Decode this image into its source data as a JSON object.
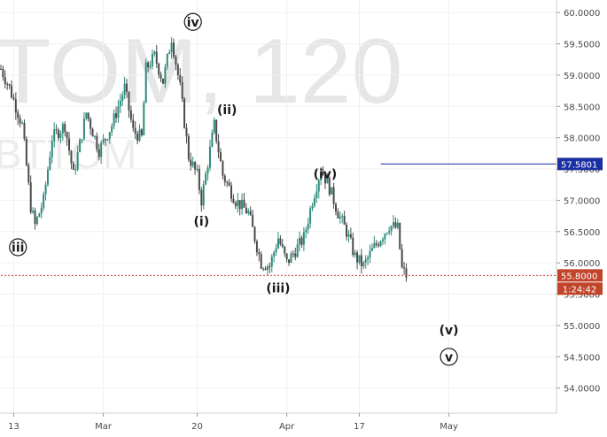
{
  "watermark": {
    "symbol": "TOM, 120",
    "subtitle": "BTTOM"
  },
  "chart_data": {
    "type": "candlestick",
    "ylim": [
      53.6,
      60.2
    ],
    "y_ticks": [
      "60.0000",
      "59.5000",
      "59.0000",
      "58.5000",
      "58.0000",
      "57.5000",
      "57.0000",
      "56.5000",
      "56.0000",
      "55.5000",
      "55.0000",
      "54.5000",
      "54.0000"
    ],
    "x_ticks": [
      {
        "label": "13",
        "index": 3
      },
      {
        "label": "Mar",
        "index": 24
      },
      {
        "label": "20",
        "index": 46
      },
      {
        "label": "Apr",
        "index": 67
      },
      {
        "label": "17",
        "index": 84
      },
      {
        "label": "May",
        "index": 105
      }
    ],
    "bars_total": 130,
    "anchors": [
      [
        0,
        59.1
      ],
      [
        2,
        58.8
      ],
      [
        5,
        58.2
      ],
      [
        7,
        56.9
      ],
      [
        8,
        56.6
      ],
      [
        10,
        57.0
      ],
      [
        12,
        58.0
      ],
      [
        15,
        58.2
      ],
      [
        17,
        57.4
      ],
      [
        20,
        58.4
      ],
      [
        23,
        57.8
      ],
      [
        26,
        58.2
      ],
      [
        29,
        58.8
      ],
      [
        31,
        58.1
      ],
      [
        33,
        58.0
      ],
      [
        34,
        59.1
      ],
      [
        36,
        59.3
      ],
      [
        38,
        58.9
      ],
      [
        40,
        59.6
      ],
      [
        42,
        58.8
      ],
      [
        44,
        57.7
      ],
      [
        46,
        57.4
      ],
      [
        47,
        57.0
      ],
      [
        50,
        58.2
      ],
      [
        52,
        57.4
      ],
      [
        55,
        57.0
      ],
      [
        58,
        56.8
      ],
      [
        61,
        56.0
      ],
      [
        63,
        55.95
      ],
      [
        65,
        56.4
      ],
      [
        67,
        56.0
      ],
      [
        69,
        56.2
      ],
      [
        71,
        56.4
      ],
      [
        73,
        57.0
      ],
      [
        75,
        57.5
      ],
      [
        77,
        57.2
      ],
      [
        79,
        56.8
      ],
      [
        81,
        56.5
      ],
      [
        83,
        56.1
      ],
      [
        85,
        55.95
      ],
      [
        87,
        56.2
      ],
      [
        89,
        56.4
      ],
      [
        91,
        56.6
      ],
      [
        93,
        56.55
      ],
      [
        94,
        55.9
      ],
      [
        95,
        55.8
      ]
    ],
    "series": [
      {
        "values_note": ""
      }
    ],
    "horizontal_lines": [
      {
        "value": 57.5801,
        "label": "57.5801",
        "color": "#1a2fa3",
        "style": "solid",
        "x_start_index": 89
      },
      {
        "value": 55.8,
        "label": "55.8000",
        "color": "#c0452b",
        "style": "dashed",
        "x_start_index": 0
      }
    ],
    "countdown": "1:24:42",
    "wave_labels": [
      {
        "text": "iii",
        "circled": true,
        "index": 4,
        "value": 56.25
      },
      {
        "text": "iv",
        "circled": true,
        "index": 45,
        "value": 59.85
      },
      {
        "text": "(ii)",
        "circled": false,
        "index": 53,
        "value": 58.45
      },
      {
        "text": "(i)",
        "circled": false,
        "index": 47,
        "value": 56.67
      },
      {
        "text": "(iii)",
        "circled": false,
        "index": 65,
        "value": 55.6
      },
      {
        "text": "(iv)",
        "circled": false,
        "index": 76,
        "value": 57.42
      },
      {
        "text": "(v)",
        "circled": false,
        "index": 105,
        "value": 54.93
      },
      {
        "text": "v",
        "circled": true,
        "index": 105,
        "value": 54.5
      }
    ],
    "colors": {
      "up": "#2d8a7a",
      "down": "#4a4a4a",
      "grid": "#f0f0f0",
      "axis": "#cfcfcf"
    }
  }
}
